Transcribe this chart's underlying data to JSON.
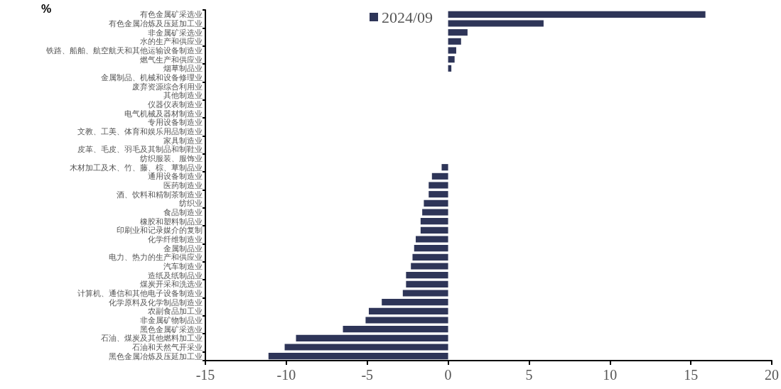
{
  "chart_data": {
    "type": "bar",
    "orientation": "horizontal",
    "ylabel": "%",
    "categories": [
      "有色金属矿采选业",
      "有色金属冶炼及压延加工业",
      "非金属矿采选业",
      "水的生产和供应业",
      "铁路、船舶、航空航天和其他运输设备制造业",
      "燃气生产和供应业",
      "烟草制品业",
      "金属制品、机械和设备修理业",
      "废弃资源综合利用业",
      "其他制造业",
      "仪器仪表制造业",
      "电气机械及器材制造业",
      "专用设备制造业",
      "文教、工美、体育和娱乐用品制造业",
      "家具制造业",
      "皮革、毛皮、羽毛及其制品和制鞋业",
      "纺织服装、服饰业",
      "木材加工及木、竹、藤、棕、草制品业",
      "通用设备制造业",
      "医药制造业",
      "酒、饮料和精制茶制造业",
      "纺织业",
      "食品制造业",
      "橡胶和塑料制品业",
      "印刷业和记录媒介的复制",
      "化学纤维制造业",
      "金属制品业",
      "电力、热力的生产和供应业",
      "汽车制造业",
      "造纸及纸制品业",
      "煤炭开采和洗选业",
      "计算机、通信和其他电子设备制造业",
      "化学原料及化学制品制造业",
      "农副食品加工业",
      "非金属矿物制品业",
      "黑色金属矿采选业",
      "石油、煤炭及其他燃料加工业",
      "石油和天然气开采业",
      "黑色金属冶炼及压延加工业"
    ],
    "series": [
      {
        "name": "2024/09",
        "color": "#2e3558",
        "values": [
          15.9,
          5.9,
          1.2,
          0.8,
          0.5,
          0.4,
          0.2,
          0,
          0,
          0,
          0,
          0,
          0,
          0,
          0,
          0,
          0,
          -0.4,
          -1.0,
          -1.2,
          -1.2,
          -1.5,
          -1.6,
          -1.7,
          -1.7,
          -2.0,
          -2.1,
          -2.2,
          -2.3,
          -2.6,
          -2.6,
          -2.8,
          -4.1,
          -4.9,
          -5.1,
          -6.5,
          -9.4,
          -10.1,
          -11.1
        ]
      }
    ],
    "xlim": [
      -15,
      20
    ],
    "xticks": [
      -15,
      -10,
      -5,
      0,
      5,
      10,
      15,
      20
    ],
    "grid": false,
    "legend": "top"
  }
}
